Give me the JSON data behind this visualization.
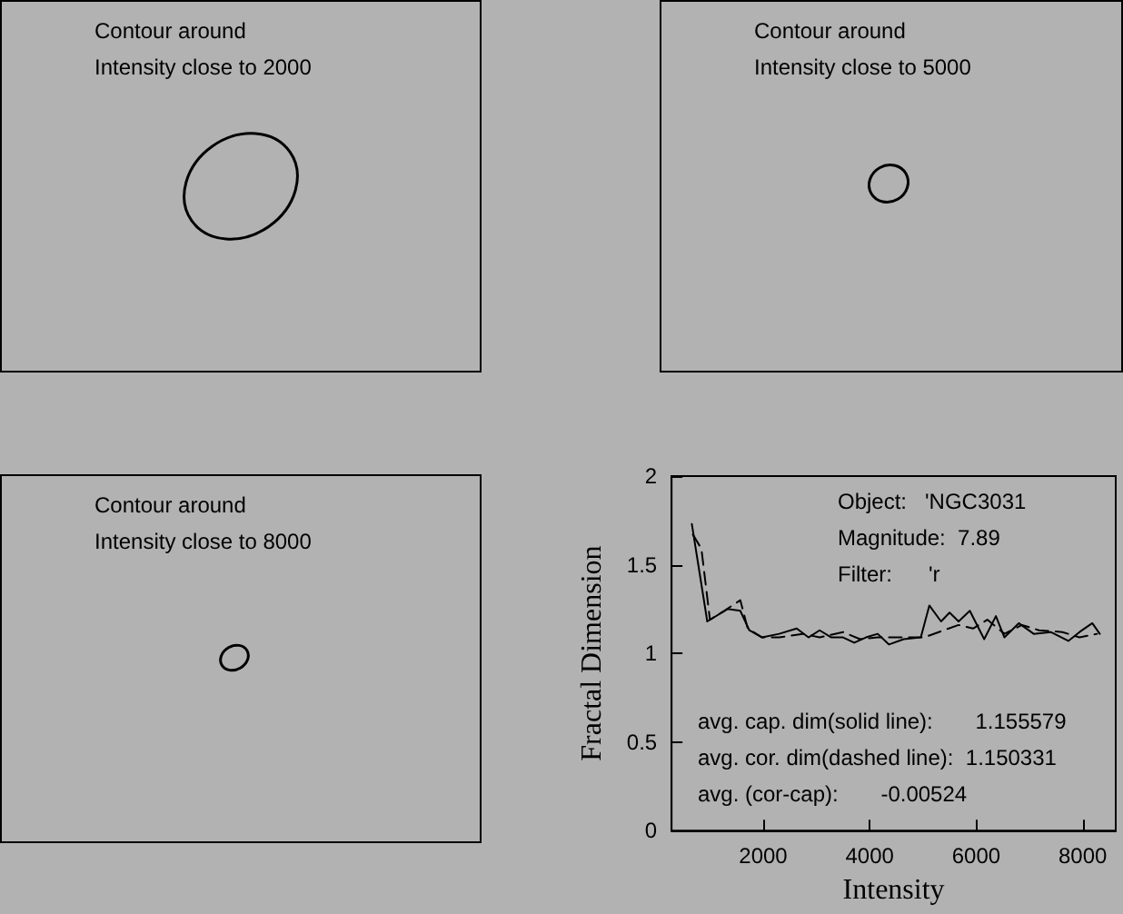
{
  "chart_data": [
    {
      "type": "other",
      "title": "Contour around",
      "subtitle": "Intensity close to 2000"
    },
    {
      "type": "other",
      "title": "Contour around",
      "subtitle": "Intensity close to 5000"
    },
    {
      "type": "other",
      "title": "Contour around",
      "subtitle": "Intensity close to 8000"
    },
    {
      "type": "line",
      "xlabel": "Intensity",
      "ylabel": "Fractal Dimension",
      "xlim": [
        280,
        8620
      ],
      "xticks": [
        2000,
        4000,
        6000,
        8000
      ],
      "ylim": [
        0,
        2
      ],
      "yticks": [
        0,
        0.5,
        1,
        1.5,
        2
      ],
      "grid": false,
      "marker": "none",
      "annotations": [
        "Object:   'NGC3031",
        "Magnitude:  7.89",
        "Filter:      'r",
        "avg. cap. dim(solid line):       1.155579",
        "avg. cor. dim(dashed line):  1.150331",
        "avg. (cor-cap):       -0.00524"
      ],
      "series": [
        {
          "color": "#000000",
          "line_style": "solid",
          "x": [
            660,
            950,
            1330,
            1570,
            1740,
            1980,
            2300,
            2630,
            2850,
            3060,
            3280,
            3500,
            3710,
            3930,
            4150,
            4360,
            4640,
            4960,
            5120,
            5340,
            5500,
            5670,
            5880,
            6150,
            6370,
            6530,
            6800,
            7080,
            7400,
            7730,
            7940,
            8180,
            8320
          ],
          "values": [
            1.73,
            1.18,
            1.25,
            1.24,
            1.13,
            1.09,
            1.11,
            1.14,
            1.09,
            1.13,
            1.09,
            1.09,
            1.06,
            1.09,
            1.11,
            1.05,
            1.08,
            1.09,
            1.27,
            1.18,
            1.23,
            1.18,
            1.24,
            1.08,
            1.21,
            1.09,
            1.17,
            1.11,
            1.12,
            1.07,
            1.12,
            1.17,
            1.11
          ]
        },
        {
          "color": "#000000",
          "line_style": "dashed",
          "x": [
            680,
            840,
            1000,
            1270,
            1570,
            1710,
            1980,
            2300,
            2740,
            3060,
            3500,
            3820,
            4150,
            4580,
            5020,
            5390,
            5670,
            5940,
            6210,
            6530,
            6860,
            7180,
            7620,
            7940,
            8270
          ],
          "values": [
            1.67,
            1.59,
            1.19,
            1.24,
            1.3,
            1.14,
            1.09,
            1.09,
            1.11,
            1.09,
            1.12,
            1.08,
            1.09,
            1.09,
            1.09,
            1.13,
            1.16,
            1.14,
            1.19,
            1.11,
            1.16,
            1.13,
            1.12,
            1.09,
            1.11
          ]
        }
      ]
    }
  ]
}
